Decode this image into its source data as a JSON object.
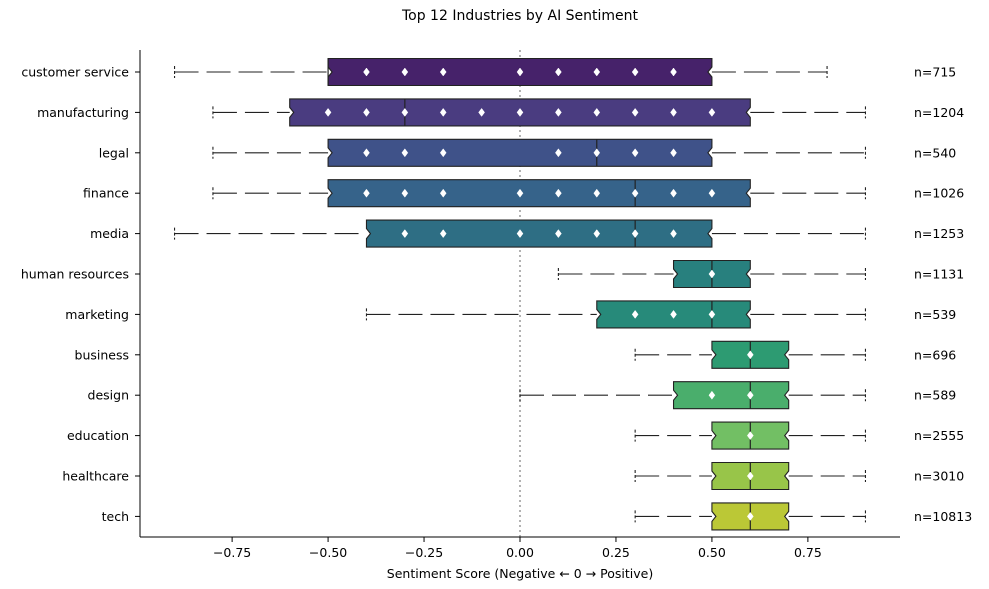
{
  "chart_data": {
    "type": "boxplot",
    "title": "Top 12 Industries by AI Sentiment",
    "xlabel": "Sentiment Score (Negative ← 0 → Positive)",
    "ylabel": "",
    "xlim": [
      -0.99,
      0.99
    ],
    "x_ticks": [
      -0.75,
      -0.5,
      -0.25,
      0.0,
      0.25,
      0.5,
      0.75
    ],
    "x_tick_labels": [
      "−0.75",
      "−0.50",
      "−0.25",
      "0.00",
      "0.25",
      "0.50",
      "0.75"
    ],
    "reference_line_x": 0,
    "grid": false,
    "categories": [
      {
        "name": "customer service",
        "whisker_low": -0.9,
        "q1": -0.5,
        "median": -0.5,
        "q3": 0.5,
        "whisker_high": 0.8,
        "n_label": "n=715",
        "points": [
          -0.4,
          -0.3,
          -0.2,
          0.0,
          0.1,
          0.2,
          0.3,
          0.4
        ],
        "color": "#46226a"
      },
      {
        "name": "manufacturing",
        "whisker_low": -0.8,
        "q1": -0.6,
        "median": -0.3,
        "q3": 0.6,
        "whisker_high": 0.9,
        "n_label": "n=1204",
        "points": [
          -0.5,
          -0.4,
          -0.3,
          -0.2,
          -0.1,
          0.0,
          0.1,
          0.2,
          0.3,
          0.4,
          0.5
        ],
        "color": "#4a3c80"
      },
      {
        "name": "legal",
        "whisker_low": -0.8,
        "q1": -0.5,
        "median": 0.2,
        "q3": 0.5,
        "whisker_high": 0.9,
        "n_label": "n=540",
        "points": [
          -0.4,
          -0.3,
          -0.2,
          0.1,
          0.2,
          0.3,
          0.4
        ],
        "color": "#3f5289"
      },
      {
        "name": "finance",
        "whisker_low": -0.8,
        "q1": -0.5,
        "median": 0.3,
        "q3": 0.6,
        "whisker_high": 0.9,
        "n_label": "n=1026",
        "points": [
          -0.4,
          -0.3,
          -0.2,
          0.0,
          0.1,
          0.2,
          0.3,
          0.4,
          0.5
        ],
        "color": "#36638a"
      },
      {
        "name": "media",
        "whisker_low": -0.9,
        "q1": -0.4,
        "median": 0.3,
        "q3": 0.5,
        "whisker_high": 0.9,
        "n_label": "n=1253",
        "points": [
          -0.3,
          -0.2,
          0.0,
          0.1,
          0.2,
          0.3,
          0.4
        ],
        "color": "#2e6e84"
      },
      {
        "name": "human resources",
        "whisker_low": 0.1,
        "q1": 0.4,
        "median": 0.5,
        "q3": 0.6,
        "whisker_high": 0.9,
        "n_label": "n=1131",
        "points": [
          0.5
        ],
        "color": "#28807e"
      },
      {
        "name": "marketing",
        "whisker_low": -0.4,
        "q1": 0.2,
        "median": 0.5,
        "q3": 0.6,
        "whisker_high": 0.9,
        "n_label": "n=539",
        "points": [
          0.3,
          0.4,
          0.5
        ],
        "color": "#278a7a"
      },
      {
        "name": "business",
        "whisker_low": 0.3,
        "q1": 0.5,
        "median": 0.6,
        "q3": 0.7,
        "whisker_high": 0.9,
        "n_label": "n=696",
        "points": [
          0.6
        ],
        "color": "#2d9b72"
      },
      {
        "name": "design",
        "whisker_low": 0.0,
        "q1": 0.4,
        "median": 0.6,
        "q3": 0.7,
        "whisker_high": 0.9,
        "n_label": "n=589",
        "points": [
          0.5,
          0.6
        ],
        "color": "#4aae6c"
      },
      {
        "name": "education",
        "whisker_low": 0.3,
        "q1": 0.5,
        "median": 0.6,
        "q3": 0.7,
        "whisker_high": 0.9,
        "n_label": "n=2555",
        "points": [
          0.6
        ],
        "color": "#72bf64"
      },
      {
        "name": "healthcare",
        "whisker_low": 0.3,
        "q1": 0.5,
        "median": 0.6,
        "q3": 0.7,
        "whisker_high": 0.9,
        "n_label": "n=3010",
        "points": [
          0.6
        ],
        "color": "#98c549"
      },
      {
        "name": "tech",
        "whisker_low": 0.3,
        "q1": 0.5,
        "median": 0.6,
        "q3": 0.7,
        "whisker_high": 0.9,
        "n_label": "n=10813",
        "points": [
          0.6
        ],
        "color": "#bbc836"
      }
    ]
  }
}
